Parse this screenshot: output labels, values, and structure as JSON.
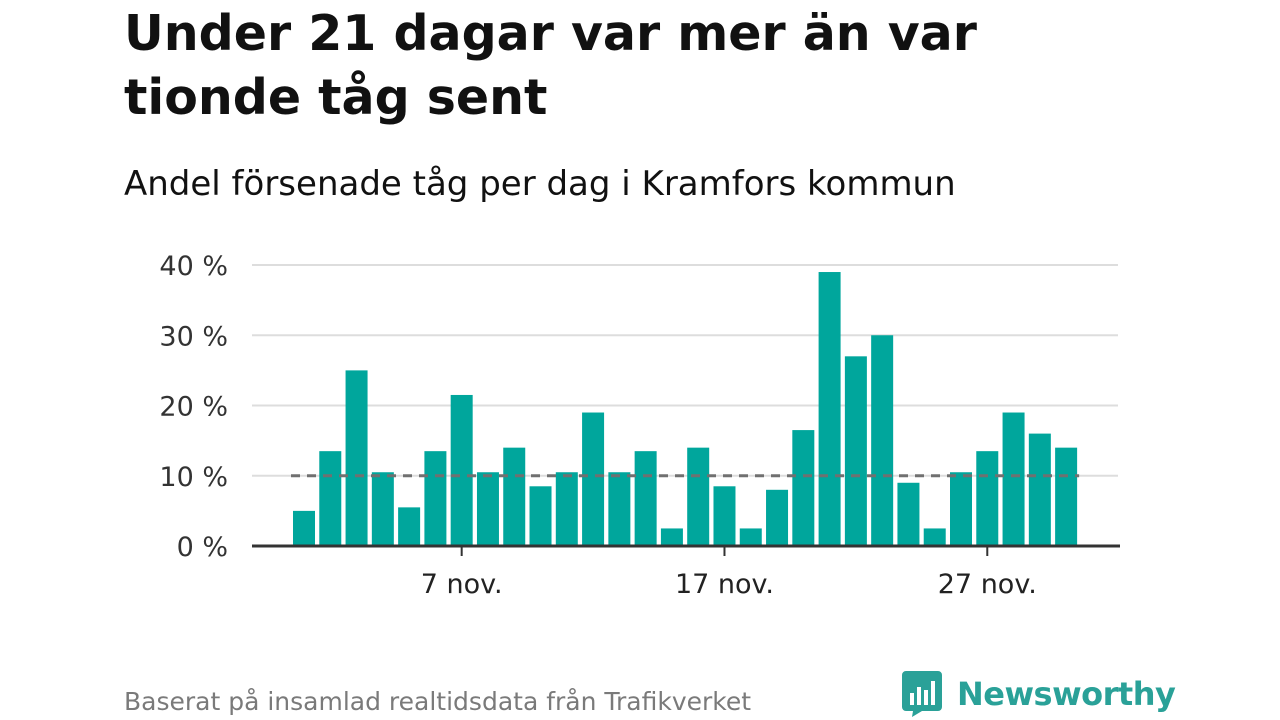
{
  "title": "Under 21 dagar var mer än var tionde tåg sent",
  "subtitle": "Andel försenade tåg per dag i Kramfors kommun",
  "footer": {
    "source": "Baserat på insamlad realtidsdata från Trafikverket",
    "brand": "Newsworthy",
    "brand_icon": "newsworthy-chart-bubble-icon"
  },
  "colors": {
    "bar": "#00a69c",
    "reference_line": "#707070",
    "grid": "#dddddd",
    "axis": "#333333",
    "brand": "#2aa198"
  },
  "chart_data": {
    "type": "bar",
    "title": "Under 21 dagar var mer än var tionde tåg sent",
    "subtitle": "Andel försenade tåg per dag i Kramfors kommun",
    "xlabel": "",
    "ylabel": "",
    "x": [
      "2023-11-01",
      "2023-11-02",
      "2023-11-03",
      "2023-11-04",
      "2023-11-05",
      "2023-11-06",
      "2023-11-07",
      "2023-11-08",
      "2023-11-09",
      "2023-11-10",
      "2023-11-11",
      "2023-11-12",
      "2023-11-13",
      "2023-11-14",
      "2023-11-15",
      "2023-11-16",
      "2023-11-17",
      "2023-11-18",
      "2023-11-19",
      "2023-11-20",
      "2023-11-21",
      "2023-11-22",
      "2023-11-23",
      "2023-11-24",
      "2023-11-25",
      "2023-11-26",
      "2023-11-27",
      "2023-11-28",
      "2023-11-29",
      "2023-11-30"
    ],
    "values": [
      5,
      13.5,
      25,
      10.5,
      5.5,
      13.5,
      21.5,
      10.5,
      14,
      8.5,
      10.5,
      19,
      10.5,
      13.5,
      2.5,
      14,
      8.5,
      2.5,
      8,
      16.5,
      39,
      27,
      30,
      9,
      2.5,
      10.5,
      13.5,
      19,
      16,
      14
    ],
    "reference_line": 10,
    "ylim": [
      0,
      40
    ],
    "yticks": [
      0,
      10,
      20,
      30,
      40
    ],
    "ytick_labels": [
      "0 %",
      "10 %",
      "20 %",
      "30 %",
      "40 %"
    ],
    "xticks": [
      "2023-11-07",
      "2023-11-17",
      "2023-11-27"
    ],
    "xtick_labels": [
      "7 nov.",
      "17 nov.",
      "27 nov."
    ],
    "grid": true,
    "legend": "none"
  }
}
